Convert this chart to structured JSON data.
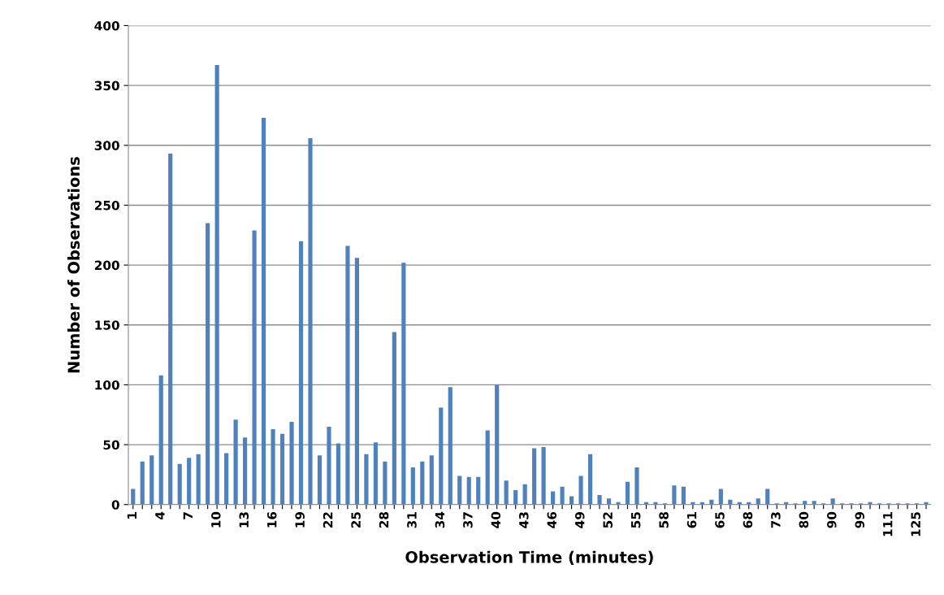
{
  "chart_data": {
    "type": "bar",
    "xlabel": "Observation Time (minutes)",
    "ylabel": "Number of Observations",
    "categories": [
      "1",
      null,
      null,
      "4",
      null,
      null,
      "7",
      null,
      null,
      "10",
      null,
      null,
      "13",
      null,
      null,
      "16",
      null,
      null,
      "19",
      null,
      null,
      "22",
      null,
      null,
      "25",
      null,
      null,
      "28",
      null,
      null,
      "31",
      null,
      null,
      "34",
      null,
      null,
      "37",
      null,
      null,
      "40",
      null,
      null,
      "43",
      null,
      null,
      "46",
      null,
      null,
      "49",
      null,
      null,
      "52",
      null,
      null,
      "55",
      null,
      null,
      "58",
      null,
      null,
      "61",
      null,
      null,
      "65",
      null,
      null,
      "68",
      null,
      null,
      "73",
      null,
      null,
      "80",
      null,
      null,
      "90",
      null,
      null,
      "99",
      null,
      null,
      "111",
      null,
      null,
      "125",
      null
    ],
    "values": [
      13,
      36,
      41,
      108,
      293,
      34,
      39,
      42,
      235,
      367,
      43,
      71,
      56,
      229,
      323,
      63,
      59,
      69,
      220,
      306,
      41,
      65,
      51,
      216,
      206,
      42,
      52,
      36,
      144,
      202,
      31,
      36,
      41,
      81,
      98,
      24,
      23,
      23,
      62,
      100,
      20,
      12,
      17,
      47,
      48,
      11,
      15,
      7,
      24,
      42,
      8,
      5,
      2,
      19,
      31,
      2,
      2,
      1,
      16,
      15,
      2,
      2,
      4,
      13,
      4,
      2,
      2,
      5,
      13,
      1,
      2,
      1,
      3,
      3,
      1,
      5,
      1,
      1,
      1,
      2,
      1,
      1,
      1,
      1,
      1,
      2
    ],
    "color": "#4f81bd",
    "ylim": [
      0,
      400
    ],
    "yticks": [
      0,
      50,
      100,
      150,
      200,
      250,
      300,
      350,
      400
    ],
    "grid": "y",
    "legend": false
  }
}
